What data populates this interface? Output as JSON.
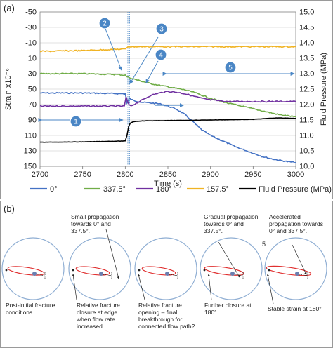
{
  "panel_a_label": "(a)",
  "panel_b_label": "(b)",
  "chart_data": {
    "type": "line",
    "xlabel": "Time (s)",
    "ylabel_left": "Strain x10⁻⁶",
    "ylabel_right": "Fluid Pressure (MPa)",
    "x_ticks": [
      "2700",
      "2750",
      "2800",
      "2850",
      "2900",
      "2950",
      "3000"
    ],
    "y_left_ticks": [
      "-50",
      "-30",
      "-10",
      "10",
      "30",
      "50",
      "70",
      "90",
      "110",
      "130",
      "150"
    ],
    "y_right_ticks": [
      "15.0",
      "14.5",
      "14.0",
      "13.5",
      "13.0",
      "12.5",
      "12.0",
      "11.5",
      "11.0",
      "10.5",
      "10.0"
    ],
    "xlim": [
      2700,
      3000
    ],
    "ylim_left": [
      -50,
      150
    ],
    "ylim_left_inverted": true,
    "ylim_right": [
      10.0,
      15.0
    ],
    "grid": "horizontal",
    "legend_position": "bottom",
    "series": [
      {
        "name": "0°",
        "color": "#4472c4",
        "axis": "left",
        "x": [
          2700,
          2750,
          2800,
          2802,
          2805,
          2810,
          2820,
          2830,
          2840,
          2850,
          2860,
          2870,
          2880,
          2890,
          2900,
          2910,
          2920,
          2930,
          2940,
          2950,
          2960,
          2970,
          2980,
          2990,
          3000
        ],
        "y": [
          55,
          55,
          56,
          68,
          62,
          65,
          67,
          68,
          69,
          72,
          76,
          83,
          93,
          103,
          110,
          115,
          120,
          125,
          129,
          133,
          137,
          140,
          142,
          144,
          145
        ]
      },
      {
        "name": "337.5°",
        "color": "#70ad47",
        "axis": "left",
        "x": [
          2700,
          2750,
          2790,
          2800,
          2802,
          2810,
          2820,
          2830,
          2840,
          2850,
          2860,
          2870,
          2880,
          2890,
          2900,
          2920,
          2940,
          2960,
          2980,
          3000
        ],
        "y": [
          30,
          30,
          31,
          32,
          34,
          37,
          40,
          43,
          45,
          47,
          49,
          51,
          54,
          58,
          62,
          68,
          73,
          78,
          83,
          86
        ]
      },
      {
        "name": "180°",
        "color": "#7030a0",
        "axis": "left",
        "x": [
          2700,
          2750,
          2799,
          2801,
          2803,
          2806,
          2810,
          2820,
          2830,
          2840,
          2850,
          2860,
          2870,
          2880,
          2890,
          2900,
          2920,
          2940,
          2960,
          2980,
          3000
        ],
        "y": [
          72,
          72,
          72,
          60,
          68,
          72,
          70,
          64,
          58,
          55,
          53,
          54,
          56,
          59,
          62,
          64,
          66,
          66,
          66,
          66,
          66
        ]
      },
      {
        "name": "157.5°",
        "color": "#f0b323",
        "axis": "left",
        "x": [
          2700,
          2750,
          2800,
          2803,
          2850,
          2900,
          2950,
          3000
        ],
        "y": [
          1,
          0,
          -2,
          -5,
          -5,
          -5,
          -5,
          -5
        ]
      },
      {
        "name": "Fluid Pressure (MPa)",
        "color": "#000000",
        "axis": "right",
        "x": [
          2700,
          2750,
          2800,
          2802,
          2804,
          2806,
          2810,
          2820,
          2850,
          2900,
          2950,
          2980,
          3000
        ],
        "y": [
          10.78,
          10.79,
          10.82,
          11.0,
          11.3,
          11.4,
          11.45,
          11.47,
          11.48,
          11.5,
          11.52,
          11.57,
          11.55
        ]
      }
    ],
    "vlines_x": [
      2801,
      2803,
      2805
    ],
    "callouts": [
      {
        "label": "1",
        "color": "#4a86c5"
      },
      {
        "label": "2",
        "color": "#4a86c5"
      },
      {
        "label": "3",
        "color": "#4a86c5"
      },
      {
        "label": "4",
        "color": "#4a86c5"
      },
      {
        "label": "5",
        "color": "#4a86c5"
      }
    ]
  },
  "diagrams": [
    {
      "number": "1",
      "above": "",
      "below": "Post-initial fracture\nconditions"
    },
    {
      "number": "2",
      "above": "Small propagation\ntowards 0° and\n337.5°.",
      "below": "Relative fracture\nclosure at edge\nwhen flow rate\nincreased"
    },
    {
      "number": "3",
      "above": "",
      "below": "Relative fracture\nopening – final\nbreakthrough for\nconnected flow path?"
    },
    {
      "number": "4",
      "above": "Gradual propagation\ntowards 0° and\n337.5°.",
      "below": "Further closure at\n180°"
    },
    {
      "number": "5",
      "above": "Accelerated\npropagation towards\n0° and 337.5°.",
      "below": "Stable strain at 180°"
    }
  ]
}
